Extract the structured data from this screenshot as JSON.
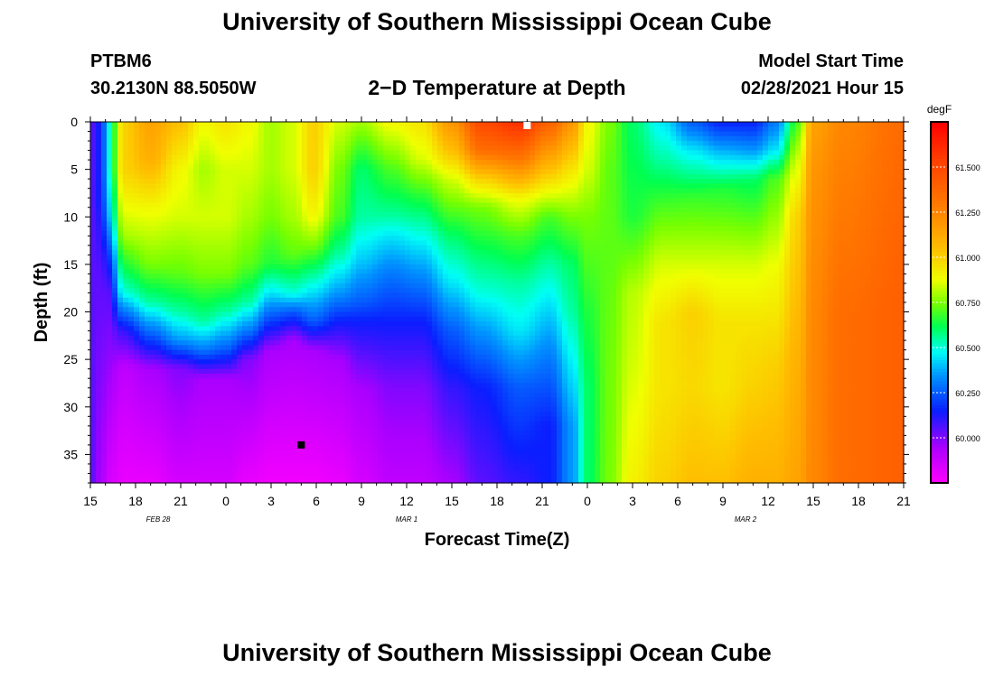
{
  "header": {
    "title": "University of Southern Mississippi Ocean Cube",
    "station_id": "PTBM6",
    "coordinates": "30.2130N 88.5050W",
    "plot_title": "2−D Temperature at Depth",
    "model_label": "Model Start Time",
    "model_time": "02/28/2021 Hour 15"
  },
  "footer": {
    "title": "University of Southern Mississippi Ocean Cube"
  },
  "chart_data": {
    "type": "heatmap",
    "title": "2−D Temperature at Depth",
    "xlabel": "Forecast Time(Z)",
    "ylabel": "Depth (ft)",
    "x_start_hour": 15,
    "x_range_hours": [
      0,
      54
    ],
    "x_tick_labels": [
      "15",
      "18",
      "21",
      "0",
      "3",
      "6",
      "9",
      "12",
      "15",
      "18",
      "21",
      "0",
      "3",
      "6",
      "9",
      "12",
      "15",
      "18",
      "21"
    ],
    "date_labels": [
      {
        "label": "FEB 28",
        "hour": 4.5
      },
      {
        "label": "MAR 1",
        "hour": 21
      },
      {
        "label": "MAR 2",
        "hour": 43.5
      }
    ],
    "ylim": [
      0,
      38
    ],
    "y_ticks": [
      0,
      5,
      10,
      15,
      20,
      25,
      30,
      35
    ],
    "y_tick_labels": [
      "0",
      "5",
      "10",
      "15",
      "20",
      "25",
      "30",
      "35"
    ],
    "colorbar": {
      "unit": "degF",
      "range": [
        59.75,
        61.75
      ],
      "tick_values": [
        60.0,
        60.25,
        60.5,
        60.75,
        61.0,
        61.25,
        61.5
      ],
      "tick_labels": [
        "60.000",
        "60.250",
        "60.500",
        "60.750",
        "61.000",
        "61.250",
        "61.500"
      ]
    },
    "field_description": "temperature (degF) vs forecast hour and depth; estimated profiles",
    "columns": [
      {
        "hour": 0,
        "t": [
          [
            0,
            60.05
          ],
          [
            38,
            60.05
          ]
        ]
      },
      {
        "hour": 0.7,
        "t": [
          [
            0,
            60.15
          ],
          [
            8,
            60.15
          ],
          [
            16,
            60.05
          ],
          [
            38,
            59.95
          ]
        ]
      },
      {
        "hour": 1.2,
        "t": [
          [
            0,
            60.5
          ],
          [
            5,
            60.5
          ],
          [
            10,
            60.4
          ],
          [
            14,
            60.2
          ],
          [
            18,
            60.05
          ],
          [
            38,
            59.85
          ]
        ]
      },
      {
        "hour": 2.2,
        "t": [
          [
            0,
            61.0
          ],
          [
            5,
            61.0
          ],
          [
            12,
            60.8
          ],
          [
            18,
            60.5
          ],
          [
            22,
            60.1
          ],
          [
            26,
            59.9
          ],
          [
            38,
            59.8
          ]
        ]
      },
      {
        "hour": 4,
        "t": [
          [
            0,
            61.15
          ],
          [
            4,
            61.1
          ],
          [
            9,
            60.9
          ],
          [
            15,
            60.75
          ],
          [
            19,
            60.55
          ],
          [
            23,
            60.2
          ],
          [
            26,
            59.95
          ],
          [
            38,
            59.8
          ]
        ]
      },
      {
        "hour": 6,
        "t": [
          [
            0,
            61.05
          ],
          [
            5,
            60.9
          ],
          [
            10,
            60.85
          ],
          [
            16,
            60.72
          ],
          [
            20,
            60.55
          ],
          [
            23,
            60.35
          ],
          [
            26,
            60.0
          ],
          [
            38,
            59.85
          ]
        ]
      },
      {
        "hour": 7.5,
        "t": [
          [
            0,
            60.9
          ],
          [
            5,
            60.8
          ],
          [
            10,
            60.85
          ],
          [
            16,
            60.75
          ],
          [
            21,
            60.55
          ],
          [
            24,
            60.3
          ],
          [
            27,
            59.95
          ],
          [
            38,
            59.85
          ]
        ]
      },
      {
        "hour": 9,
        "t": [
          [
            0,
            60.95
          ],
          [
            5,
            60.85
          ],
          [
            10,
            60.85
          ],
          [
            16,
            60.75
          ],
          [
            20,
            60.55
          ],
          [
            24,
            60.25
          ],
          [
            27,
            59.95
          ],
          [
            38,
            59.85
          ]
        ]
      },
      {
        "hour": 10.5,
        "t": [
          [
            0,
            60.9
          ],
          [
            5,
            60.85
          ],
          [
            10,
            60.8
          ],
          [
            15,
            60.72
          ],
          [
            19,
            60.55
          ],
          [
            22,
            60.3
          ],
          [
            25,
            60.0
          ],
          [
            38,
            59.8
          ]
        ]
      },
      {
        "hour": 12,
        "t": [
          [
            0,
            60.8
          ],
          [
            5,
            60.8
          ],
          [
            10,
            60.75
          ],
          [
            15,
            60.65
          ],
          [
            18,
            60.45
          ],
          [
            21,
            60.2
          ],
          [
            24,
            59.95
          ],
          [
            38,
            59.78
          ]
        ]
      },
      {
        "hour": 13.5,
        "t": [
          [
            0,
            60.85
          ],
          [
            5,
            60.85
          ],
          [
            10,
            60.8
          ],
          [
            14,
            60.72
          ],
          [
            18,
            60.5
          ],
          [
            20,
            60.25
          ],
          [
            23,
            59.95
          ],
          [
            38,
            59.78
          ]
        ]
      },
      {
        "hour": 14.8,
        "t": [
          [
            0,
            61.0
          ],
          [
            5,
            61.0
          ],
          [
            10,
            60.9
          ],
          [
            13,
            60.75
          ],
          [
            17,
            60.5
          ],
          [
            21,
            60.25
          ],
          [
            24,
            59.95
          ],
          [
            38,
            59.78
          ]
        ]
      },
      {
        "hour": 16.5,
        "t": [
          [
            0,
            60.85
          ],
          [
            5,
            60.75
          ],
          [
            10,
            60.7
          ],
          [
            14,
            60.55
          ],
          [
            18,
            60.35
          ],
          [
            21,
            60.15
          ],
          [
            25,
            59.95
          ],
          [
            38,
            59.8
          ]
        ]
      },
      {
        "hour": 18,
        "t": [
          [
            0,
            60.8
          ],
          [
            5,
            60.6
          ],
          [
            10,
            60.55
          ],
          [
            15,
            60.4
          ],
          [
            19,
            60.25
          ],
          [
            21,
            60.15
          ],
          [
            28,
            59.95
          ],
          [
            38,
            59.85
          ]
        ]
      },
      {
        "hour": 20,
        "t": [
          [
            0,
            60.9
          ],
          [
            5,
            60.7
          ],
          [
            10,
            60.55
          ],
          [
            12,
            60.45
          ],
          [
            16,
            60.3
          ],
          [
            21,
            60.15
          ],
          [
            28,
            60.0
          ],
          [
            38,
            59.9
          ]
        ]
      },
      {
        "hour": 22,
        "t": [
          [
            0,
            60.95
          ],
          [
            4,
            60.85
          ],
          [
            8,
            60.65
          ],
          [
            13,
            60.45
          ],
          [
            17,
            60.3
          ],
          [
            21,
            60.15
          ],
          [
            28,
            60.0
          ],
          [
            38,
            59.9
          ]
        ]
      },
      {
        "hour": 24,
        "t": [
          [
            0,
            61.2
          ],
          [
            3,
            61.05
          ],
          [
            6,
            60.85
          ],
          [
            12,
            60.6
          ],
          [
            17,
            60.45
          ],
          [
            22,
            60.25
          ],
          [
            28,
            60.1
          ],
          [
            38,
            59.95
          ]
        ]
      },
      {
        "hour": 26,
        "t": [
          [
            0,
            61.5
          ],
          [
            3,
            61.35
          ],
          [
            6,
            61.0
          ],
          [
            9,
            60.75
          ],
          [
            14,
            60.6
          ],
          [
            18,
            60.5
          ],
          [
            22,
            60.35
          ],
          [
            28,
            60.15
          ],
          [
            38,
            60.05
          ]
        ]
      },
      {
        "hour": 28.5,
        "t": [
          [
            0,
            61.6
          ],
          [
            4,
            61.3
          ],
          [
            8,
            60.9
          ],
          [
            12,
            60.7
          ],
          [
            17,
            60.55
          ],
          [
            22,
            60.45
          ],
          [
            28,
            60.25
          ],
          [
            38,
            60.1
          ]
        ]
      },
      {
        "hour": 30.5,
        "t": [
          [
            0,
            61.4
          ],
          [
            5,
            61.05
          ],
          [
            10,
            60.7
          ],
          [
            15,
            60.55
          ],
          [
            19,
            60.45
          ],
          [
            25,
            60.3
          ],
          [
            32,
            60.15
          ],
          [
            38,
            60.15
          ]
        ]
      },
      {
        "hour": 32,
        "t": [
          [
            0,
            61.2
          ],
          [
            5,
            60.95
          ],
          [
            10,
            60.75
          ],
          [
            15,
            60.6
          ],
          [
            20,
            60.55
          ],
          [
            26,
            60.45
          ],
          [
            32,
            60.35
          ],
          [
            38,
            60.35
          ]
        ]
      },
      {
        "hour": 33,
        "t": [
          [
            0,
            60.9
          ],
          [
            5,
            60.85
          ],
          [
            10,
            60.75
          ],
          [
            20,
            60.65
          ],
          [
            28,
            60.6
          ],
          [
            38,
            60.6
          ]
        ]
      },
      {
        "hour": 34.5,
        "t": [
          [
            0,
            60.75
          ],
          [
            5,
            60.72
          ],
          [
            15,
            60.72
          ],
          [
            25,
            60.74
          ],
          [
            38,
            60.75
          ]
        ]
      },
      {
        "hour": 36,
        "t": [
          [
            0,
            60.6
          ],
          [
            4,
            60.62
          ],
          [
            10,
            60.65
          ],
          [
            18,
            60.82
          ],
          [
            26,
            60.85
          ],
          [
            38,
            60.92
          ]
        ]
      },
      {
        "hour": 38,
        "t": [
          [
            0,
            60.45
          ],
          [
            4,
            60.55
          ],
          [
            9,
            60.7
          ],
          [
            15,
            60.85
          ],
          [
            21,
            60.95
          ],
          [
            28,
            60.95
          ],
          [
            38,
            61.0
          ]
        ]
      },
      {
        "hour": 40,
        "t": [
          [
            0,
            60.25
          ],
          [
            3,
            60.45
          ],
          [
            8,
            60.68
          ],
          [
            15,
            60.85
          ],
          [
            20,
            61.0
          ],
          [
            28,
            60.98
          ],
          [
            38,
            61.05
          ]
        ]
      },
      {
        "hour": 42,
        "t": [
          [
            0,
            60.15
          ],
          [
            3,
            60.38
          ],
          [
            7,
            60.65
          ],
          [
            15,
            60.85
          ],
          [
            21,
            60.95
          ],
          [
            28,
            60.95
          ],
          [
            38,
            61.05
          ]
        ]
      },
      {
        "hour": 44,
        "t": [
          [
            0,
            60.15
          ],
          [
            3,
            60.35
          ],
          [
            6,
            60.6
          ],
          [
            15,
            60.85
          ],
          [
            21,
            60.95
          ],
          [
            28,
            61.0
          ],
          [
            38,
            61.1
          ]
        ]
      },
      {
        "hour": 45.5,
        "t": [
          [
            0,
            60.3
          ],
          [
            3,
            60.45
          ],
          [
            6,
            60.7
          ],
          [
            15,
            60.88
          ],
          [
            25,
            61.0
          ],
          [
            38,
            61.1
          ]
        ]
      },
      {
        "hour": 47,
        "t": [
          [
            0,
            60.7
          ],
          [
            4,
            60.85
          ],
          [
            10,
            61.0
          ],
          [
            25,
            61.1
          ],
          [
            38,
            61.15
          ]
        ]
      },
      {
        "hour": 48,
        "t": [
          [
            0,
            61.15
          ],
          [
            5,
            61.2
          ],
          [
            20,
            61.25
          ],
          [
            38,
            61.25
          ]
        ]
      },
      {
        "hour": 50,
        "t": [
          [
            0,
            61.25
          ],
          [
            20,
            61.35
          ],
          [
            38,
            61.35
          ]
        ]
      },
      {
        "hour": 54,
        "t": [
          [
            0,
            61.35
          ],
          [
            20,
            61.4
          ],
          [
            38,
            61.4
          ]
        ]
      }
    ],
    "markers": [
      {
        "hour": 29,
        "depth": 0,
        "color": "#ffffff"
      },
      {
        "hour": 14,
        "depth": 34,
        "color": "#000000"
      }
    ]
  }
}
